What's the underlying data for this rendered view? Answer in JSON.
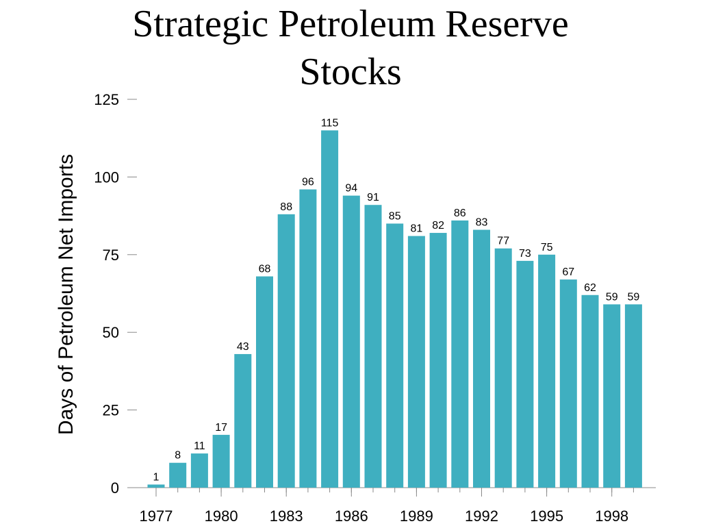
{
  "chart_data": {
    "type": "bar",
    "title_line1": "Strategic Petroleum Reserve",
    "title_line2": "Stocks",
    "ylabel": "Days of Petroleum Net Imports",
    "xlabel": "",
    "ylim": [
      0,
      125
    ],
    "yticks": [
      0,
      25,
      50,
      75,
      100,
      125
    ],
    "x_tick_labels": [
      "1977",
      "1980",
      "1983",
      "1986",
      "1989",
      "1992",
      "1995",
      "1998"
    ],
    "categories": [
      "1977",
      "1978",
      "1979",
      "1980",
      "1981",
      "1982",
      "1983",
      "1984",
      "1985",
      "1986",
      "1987",
      "1988",
      "1989",
      "1990",
      "1991",
      "1992",
      "1993",
      "1994",
      "1995",
      "1996",
      "1997",
      "1998",
      "1999"
    ],
    "values": [
      1,
      8,
      11,
      17,
      43,
      68,
      88,
      96,
      115,
      94,
      91,
      85,
      81,
      82,
      86,
      83,
      77,
      73,
      75,
      67,
      62,
      59,
      59
    ],
    "bar_color": "#3fafc0",
    "grid": false
  }
}
